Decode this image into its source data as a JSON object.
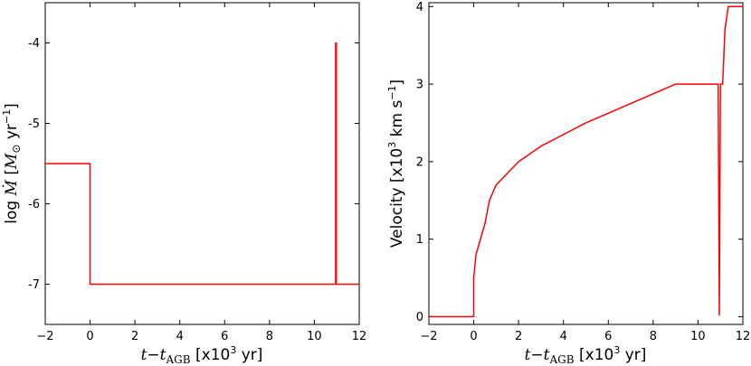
{
  "chart_data": [
    {
      "type": "line",
      "xlabel": "t−t_AGB [x10^3 yr]",
      "ylabel": "log Ṁ [M⊙ yr^-1]",
      "xlim": [
        -2,
        12
      ],
      "ylim": [
        -7.5,
        -3.5
      ],
      "xticks": [
        -2,
        0,
        2,
        4,
        6,
        8,
        10,
        12
      ],
      "yticks": [
        -7,
        -6,
        -5,
        -4
      ],
      "xtick_labels": [
        "−2",
        "0",
        "2",
        "4",
        "6",
        "8",
        "10",
        "12"
      ],
      "ytick_labels": [
        "-7",
        "-6",
        "-5",
        "-4"
      ],
      "grid": false,
      "color": "#ff0000",
      "series": [
        {
          "x": [
            -2,
            0,
            0,
            10.95,
            10.95,
            10.98,
            10.98,
            12
          ],
          "y": [
            -5.5,
            -5.5,
            -7,
            -7,
            -4,
            -4,
            -7,
            -7
          ]
        }
      ]
    },
    {
      "type": "line",
      "xlabel": "t−t_AGB [x10^3 yr]",
      "ylabel": "Velocity [x10^3 km s^-1]",
      "xlim": [
        -2,
        12
      ],
      "ylim": [
        -0.1,
        4.05
      ],
      "xticks": [
        -2,
        0,
        2,
        4,
        6,
        8,
        10,
        12
      ],
      "yticks": [
        0,
        1,
        2,
        3,
        4
      ],
      "xtick_labels": [
        "−2",
        "0",
        "2",
        "4",
        "6",
        "8",
        "10",
        "12"
      ],
      "ytick_labels": [
        "0",
        "1",
        "2",
        "3",
        "4"
      ],
      "grid": false,
      "color": "#ff0000",
      "series": [
        {
          "x": [
            -2,
            0,
            0,
            0.1,
            0.3,
            0.5,
            0.7,
            0.85,
            1.0,
            2.0,
            3.0,
            5.0,
            7.0,
            9.0,
            10.9,
            10.95,
            11.0,
            11.1,
            11.2,
            11.35,
            11.5,
            12
          ],
          "y": [
            0,
            0,
            0.5,
            0.8,
            1.0,
            1.2,
            1.5,
            1.6,
            1.7,
            2.0,
            2.2,
            2.5,
            2.75,
            3.0,
            3.0,
            0.02,
            3.0,
            3.0,
            3.7,
            4.0,
            4.0,
            4.0
          ]
        }
      ]
    }
  ]
}
